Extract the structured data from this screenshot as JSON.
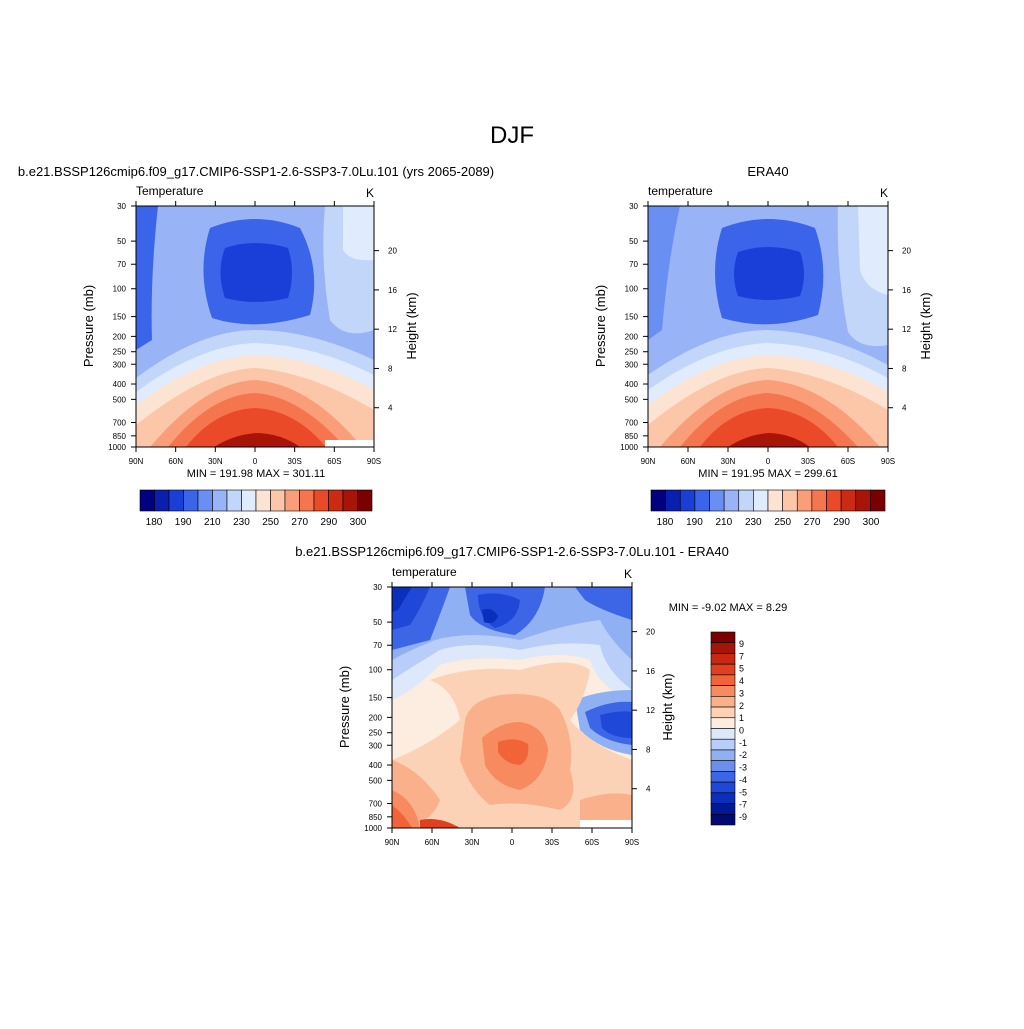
{
  "figure": {
    "title": "DJF"
  },
  "colors": {
    "main_palette": [
      "#000080",
      "#0a1fb0",
      "#1a3fd8",
      "#3a64ea",
      "#6a8ff2",
      "#98b4f6",
      "#c2d6fa",
      "#e0ecfd",
      "#fde4d2",
      "#fcc6a8",
      "#fa9e7a",
      "#f5754e",
      "#ea4a28",
      "#cc2a12",
      "#a81408",
      "#7a0000"
    ],
    "diff_palette": [
      "#7a0000",
      "#a31508",
      "#c7280f",
      "#e04020",
      "#f06438",
      "#f78a5e",
      "#fab08a",
      "#fcd2b6",
      "#fdece0",
      "#dde9fb",
      "#b8cdf7",
      "#8fb0f2",
      "#6a90ec",
      "#3c66e6",
      "#1f47d8",
      "#0a2fbc",
      "#001a96",
      "#000a72"
    ]
  },
  "chart_data": [
    {
      "type": "heatmap",
      "title": "b.e21.BSSP126cmip6.f09_g17.CMIP6-SSP1-2.6-SSP3-7.0Lu.101 (yrs 2065-2089)",
      "variable_label": "Temperature",
      "units": "K",
      "xlabel": "",
      "ylabel": "Pressure (mb)",
      "y2label": "Height (km)",
      "x_ticks": [
        "90N",
        "60N",
        "30N",
        "0",
        "30S",
        "60S",
        "90S"
      ],
      "x_values": [
        90,
        60,
        30,
        0,
        -30,
        -60,
        -90
      ],
      "y_ticks": [
        30,
        50,
        70,
        100,
        150,
        200,
        250,
        300,
        400,
        500,
        700,
        850,
        1000
      ],
      "y_scale": "log",
      "y_range": [
        30,
        1000
      ],
      "y2_ticks": [
        20,
        16,
        12,
        8,
        4
      ],
      "stats": "MIN = 191.98  MAX = 301.11",
      "min": 191.98,
      "max": 301.11,
      "levels": [
        180,
        185,
        190,
        195,
        200,
        210,
        220,
        230,
        240,
        250,
        260,
        270,
        280,
        290,
        300
      ],
      "colorbar_labels": [
        "180",
        "190",
        "210",
        "230",
        "250",
        "270",
        "290",
        "300"
      ],
      "colorbar_orientation": "horizontal"
    },
    {
      "type": "heatmap",
      "title": "ERA40",
      "variable_label": "temperature",
      "units": "K",
      "xlabel": "",
      "ylabel": "Pressure (mb)",
      "y2label": "Height (km)",
      "x_ticks": [
        "90N",
        "60N",
        "30N",
        "0",
        "30S",
        "60S",
        "90S"
      ],
      "x_values": [
        90,
        60,
        30,
        0,
        -30,
        -60,
        -90
      ],
      "y_ticks": [
        30,
        50,
        70,
        100,
        150,
        200,
        250,
        300,
        400,
        500,
        700,
        850,
        1000
      ],
      "y_scale": "log",
      "y_range": [
        30,
        1000
      ],
      "y2_ticks": [
        20,
        16,
        12,
        8,
        4
      ],
      "stats": "MIN = 191.95  MAX = 299.61",
      "min": 191.95,
      "max": 299.61,
      "levels": [
        180,
        185,
        190,
        195,
        200,
        210,
        220,
        230,
        240,
        250,
        260,
        270,
        280,
        290,
        300
      ],
      "colorbar_labels": [
        "180",
        "190",
        "210",
        "230",
        "250",
        "270",
        "290",
        "300"
      ],
      "colorbar_orientation": "horizontal"
    },
    {
      "type": "heatmap",
      "title": "b.e21.BSSP126cmip6.f09_g17.CMIP6-SSP1-2.6-SSP3-7.0Lu.101 - ERA40",
      "variable_label": "temperature",
      "units": "K",
      "xlabel": "",
      "ylabel": "Pressure (mb)",
      "y2label": "Height (km)",
      "x_ticks": [
        "90N",
        "60N",
        "30N",
        "0",
        "30S",
        "60S",
        "90S"
      ],
      "x_values": [
        90,
        60,
        30,
        0,
        -30,
        -60,
        -90
      ],
      "y_ticks": [
        30,
        50,
        70,
        100,
        150,
        200,
        250,
        300,
        400,
        500,
        700,
        850,
        1000
      ],
      "y_scale": "log",
      "y_range": [
        30,
        1000
      ],
      "y2_ticks": [
        20,
        16,
        12,
        8,
        4
      ],
      "stats": "MIN =  -9.02  MAX =   8.29",
      "min": -9.02,
      "max": 8.29,
      "levels": [
        -9,
        -8,
        -7,
        -6,
        -5,
        -4,
        -3,
        -2,
        -1,
        0,
        1,
        2,
        3,
        4,
        5,
        6,
        7,
        9
      ],
      "colorbar_labels": [
        "9",
        "7",
        "5",
        "4",
        "3",
        "2",
        "1",
        "0",
        "-1",
        "-2",
        "-3",
        "-4",
        "-5",
        "-7",
        "-9"
      ],
      "colorbar_orientation": "vertical"
    }
  ]
}
